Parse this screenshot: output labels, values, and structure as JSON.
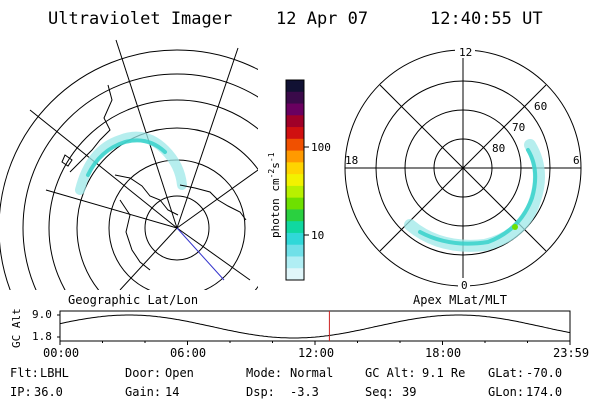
{
  "header": {
    "instrument": "Ultraviolet Imager",
    "date": "12 Apr 07",
    "time": "12:40:55 UT"
  },
  "left_map": {
    "caption": "Geographic Lat/Lon"
  },
  "right_map": {
    "caption": "Apex MLat/MLT",
    "mlt_labels": [
      "12",
      "18",
      "6",
      "0"
    ],
    "mlat_labels": [
      "60",
      "70",
      "80"
    ]
  },
  "colorbar": {
    "unit_label": "photon cm",
    "unit_sup1": "-2",
    "unit_mid": "s",
    "unit_sup2": "-1",
    "ticks": [
      "100",
      "10"
    ],
    "colors": [
      "#111133",
      "#3a0a4a",
      "#6a0060",
      "#a00028",
      "#d01010",
      "#f05000",
      "#ff9a00",
      "#ffd400",
      "#f2f200",
      "#b8f000",
      "#6ee000",
      "#2ad040",
      "#10d8a0",
      "#30d8d8",
      "#70e0e8",
      "#b0eef4",
      "#e0f6fa"
    ]
  },
  "altitude_panel": {
    "ylabel": "GC Alt",
    "ytick_top": "9.0",
    "ytick_bottom": "1.8",
    "xticks": [
      "00:00",
      "06:00",
      "12:00",
      "18:00",
      "23:59"
    ],
    "current_time_hours": 12.68
  },
  "info": {
    "flt_label": "Flt:",
    "flt_value": "LBHL",
    "door_label": "Door:",
    "door_value": "Open",
    "mode_label": "Mode:",
    "mode_value": "Normal",
    "gcalt_label": "GC Alt:",
    "gcalt_value": "9.1 Re",
    "glat_label": "GLat:",
    "glat_value": "-70.0",
    "ip_label": "IP:",
    "ip_value": "36.0",
    "gain_label": "Gain:",
    "gain_value": "14",
    "dsp_label": "Dsp:",
    "dsp_value": "-3.3",
    "seq_label": "Seq:",
    "seq_value": "39",
    "glon_label": "GLon:",
    "glon_value": "174.0"
  }
}
